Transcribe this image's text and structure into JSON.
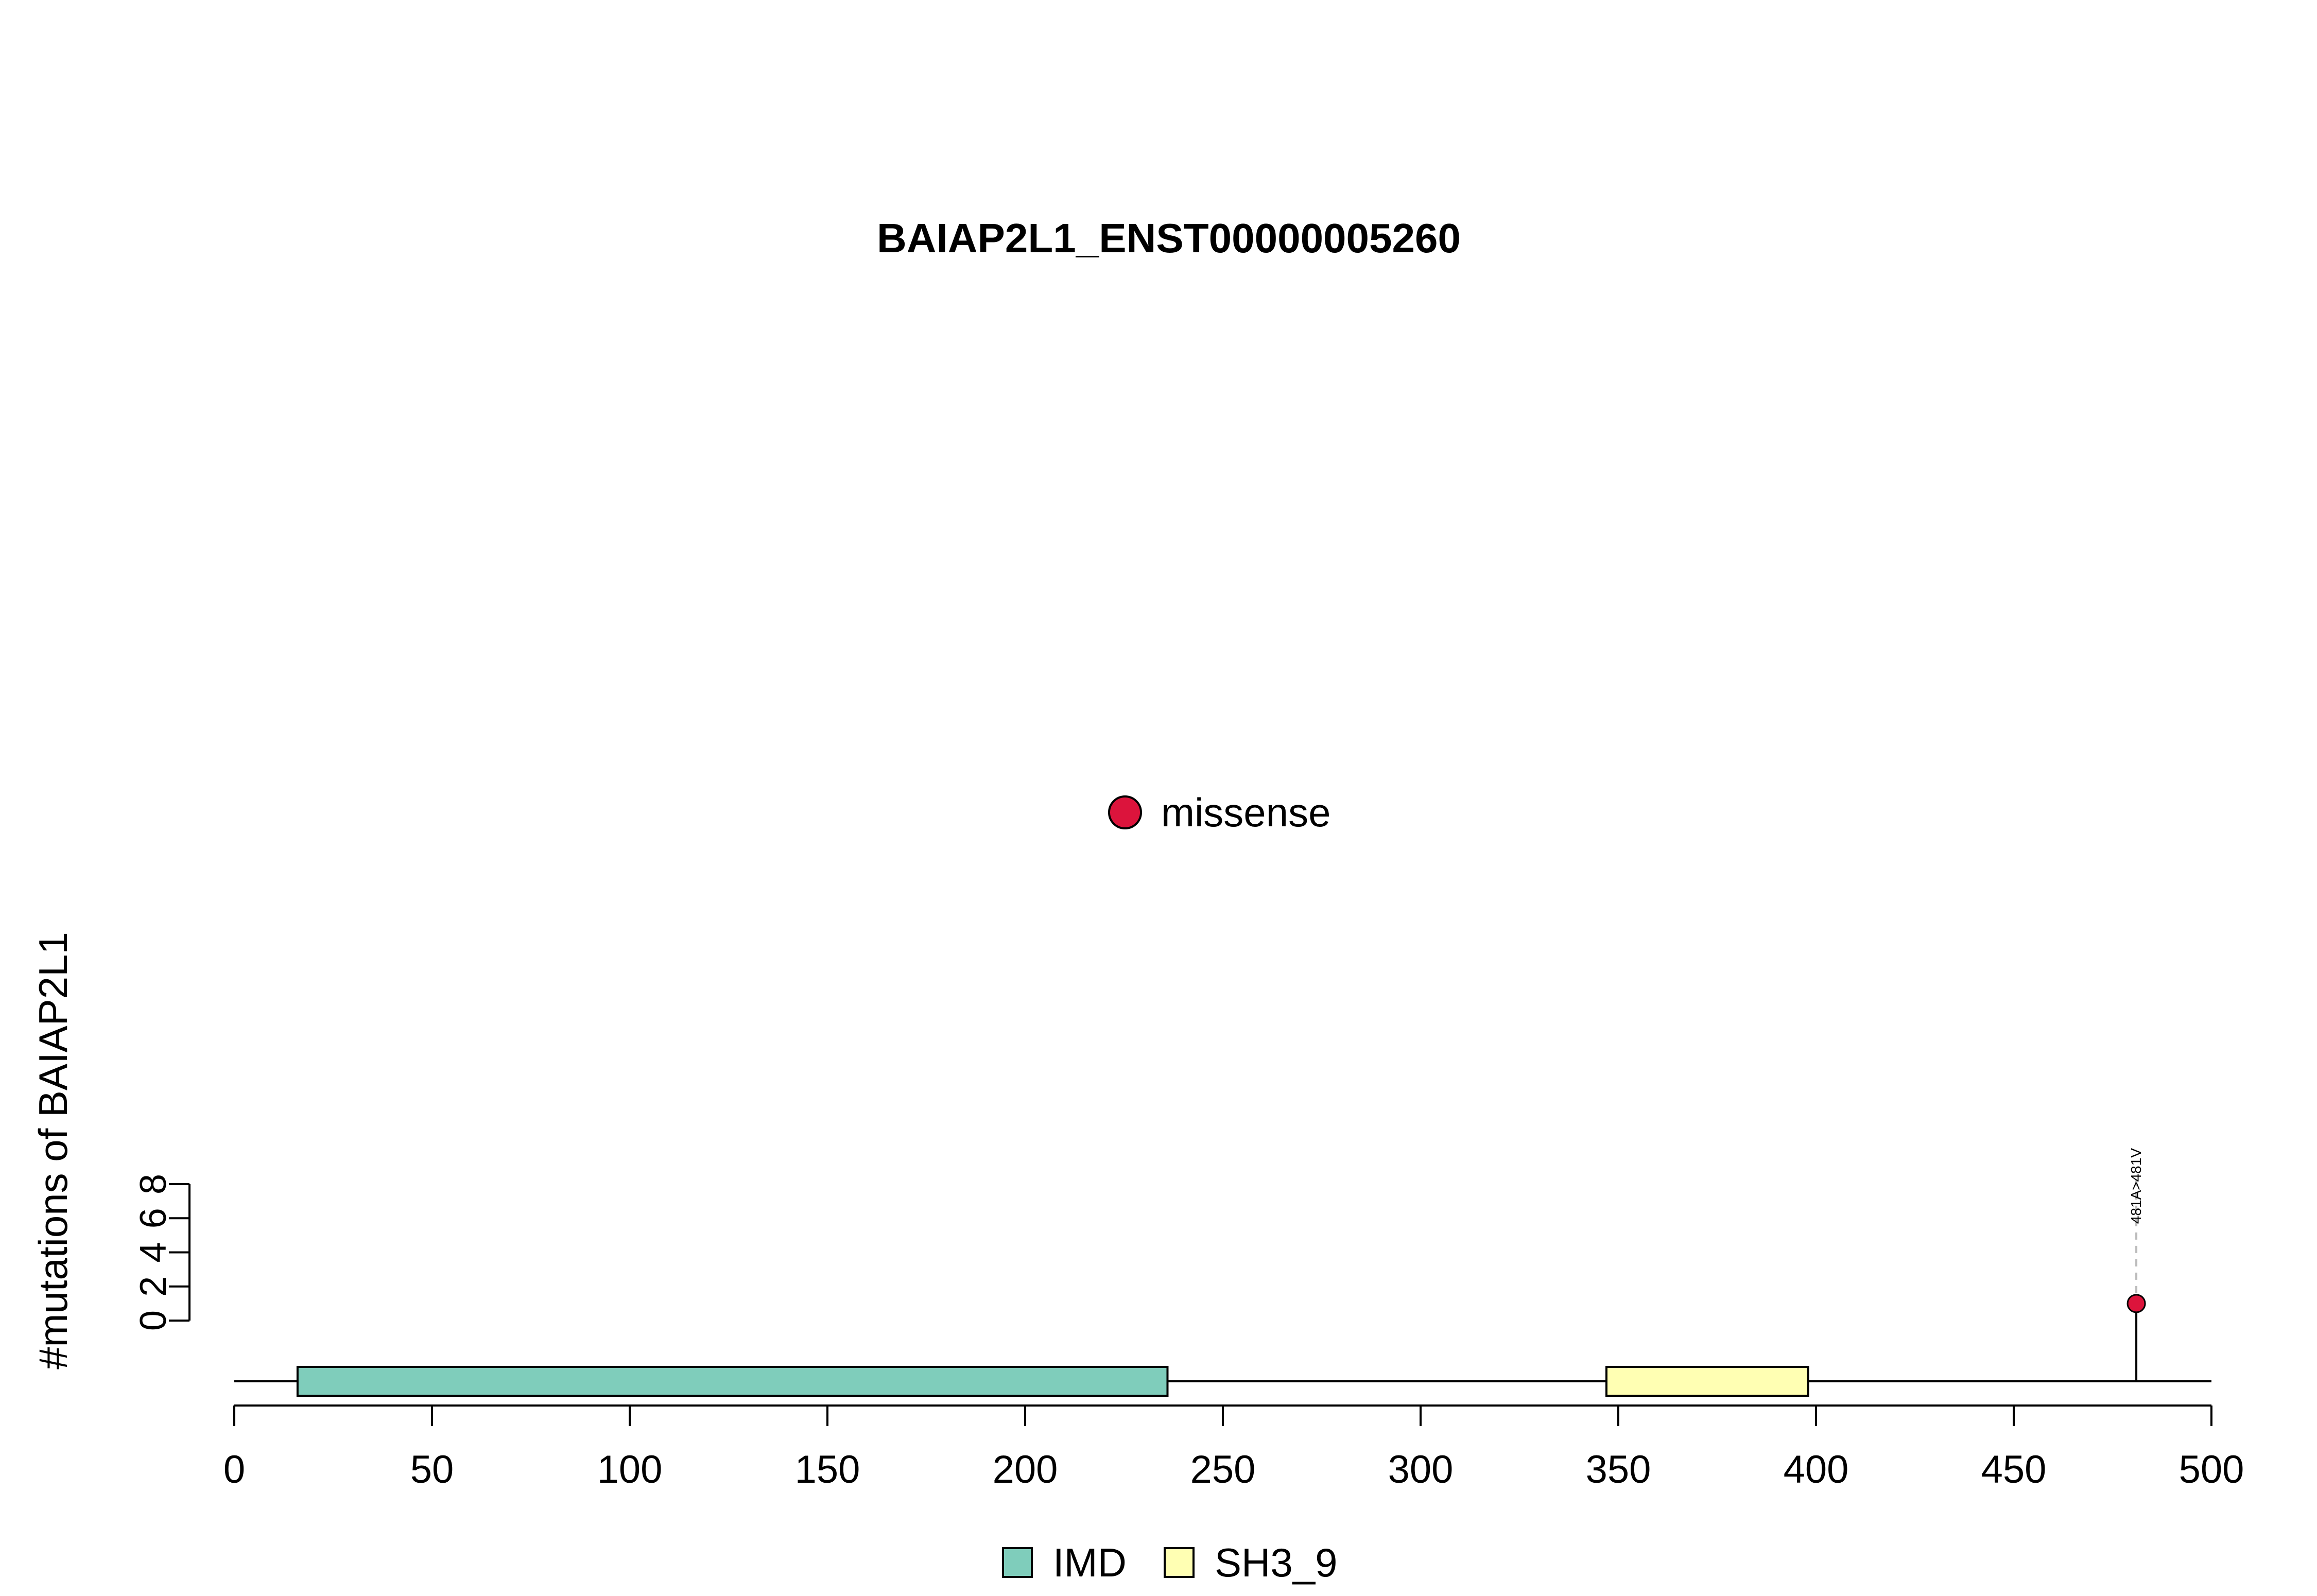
{
  "chart_data": {
    "type": "lollipop",
    "title": "BAIAP2L1_ENST00000005260",
    "xlabel": "",
    "ylabel": "#mutations of BAIAP2L1",
    "protein_length": 500,
    "xlim": [
      0,
      500
    ],
    "ylim": [
      0,
      8
    ],
    "x_ticks": [
      0,
      50,
      100,
      150,
      200,
      250,
      300,
      350,
      400,
      450,
      500
    ],
    "y_ticks": [
      0,
      2,
      4,
      6,
      8
    ],
    "domains": [
      {
        "name": "IMD",
        "start": 16,
        "end": 236,
        "color": "#7fcdbb"
      },
      {
        "name": "SH3_9",
        "start": 347,
        "end": 398,
        "color": "#ffffb3"
      }
    ],
    "mutations": [
      {
        "position": 481,
        "count": 1,
        "label": "481A>481V",
        "type": "missense",
        "color": "#dc143c"
      }
    ],
    "mutation_legend": [
      {
        "label": "missense",
        "color": "#dc143c"
      }
    ],
    "domain_legend": [
      {
        "label": "IMD",
        "color": "#7fcdbb"
      },
      {
        "label": "SH3_9",
        "color": "#ffffb3"
      }
    ],
    "grid": false
  }
}
